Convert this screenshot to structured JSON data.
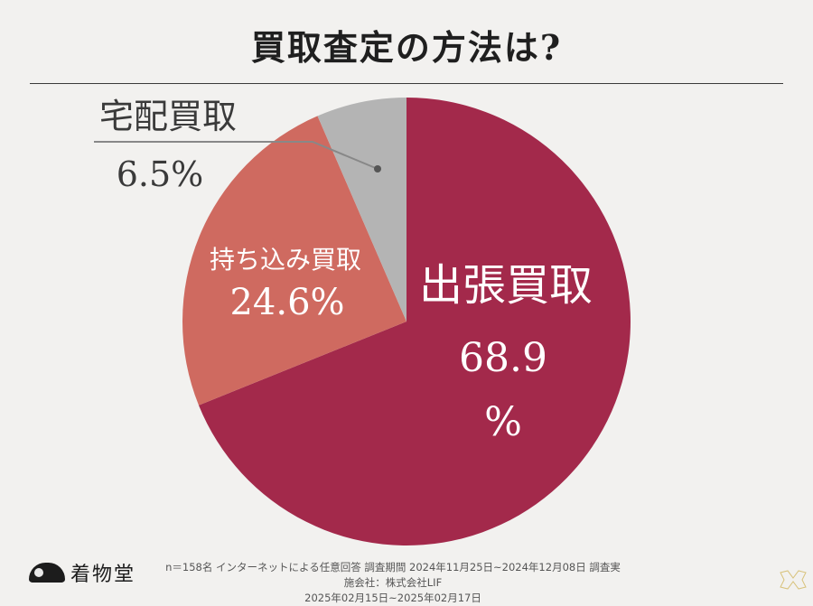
{
  "title": "買取査定の方法は?",
  "chart_data": {
    "type": "pie",
    "slices": [
      {
        "label": "出張買取",
        "value": 68.9,
        "value_text": "68.9",
        "unit": "%",
        "color": "#a3294b"
      },
      {
        "label": "持ち込み買取",
        "value": 24.6,
        "value_text": "24.6%",
        "color": "#cf6a60"
      },
      {
        "label": "宅配買取",
        "value": 6.5,
        "value_text": "6.5%",
        "color": "#b4b4b4"
      }
    ]
  },
  "footer": {
    "brand": "着物堂",
    "note_line1": "n＝158名 インターネットによる任意回答 調査期間 2024年11月25日~2024年12月08日 調査実施会社：株式会社LIF",
    "note_line2": "2025年02月15日~2025年02月17日"
  },
  "colors": {
    "background": "#f2f1ef",
    "leader_line": "#888888",
    "label_dark": "#3a3a3a",
    "label_light": "#ffffff"
  }
}
